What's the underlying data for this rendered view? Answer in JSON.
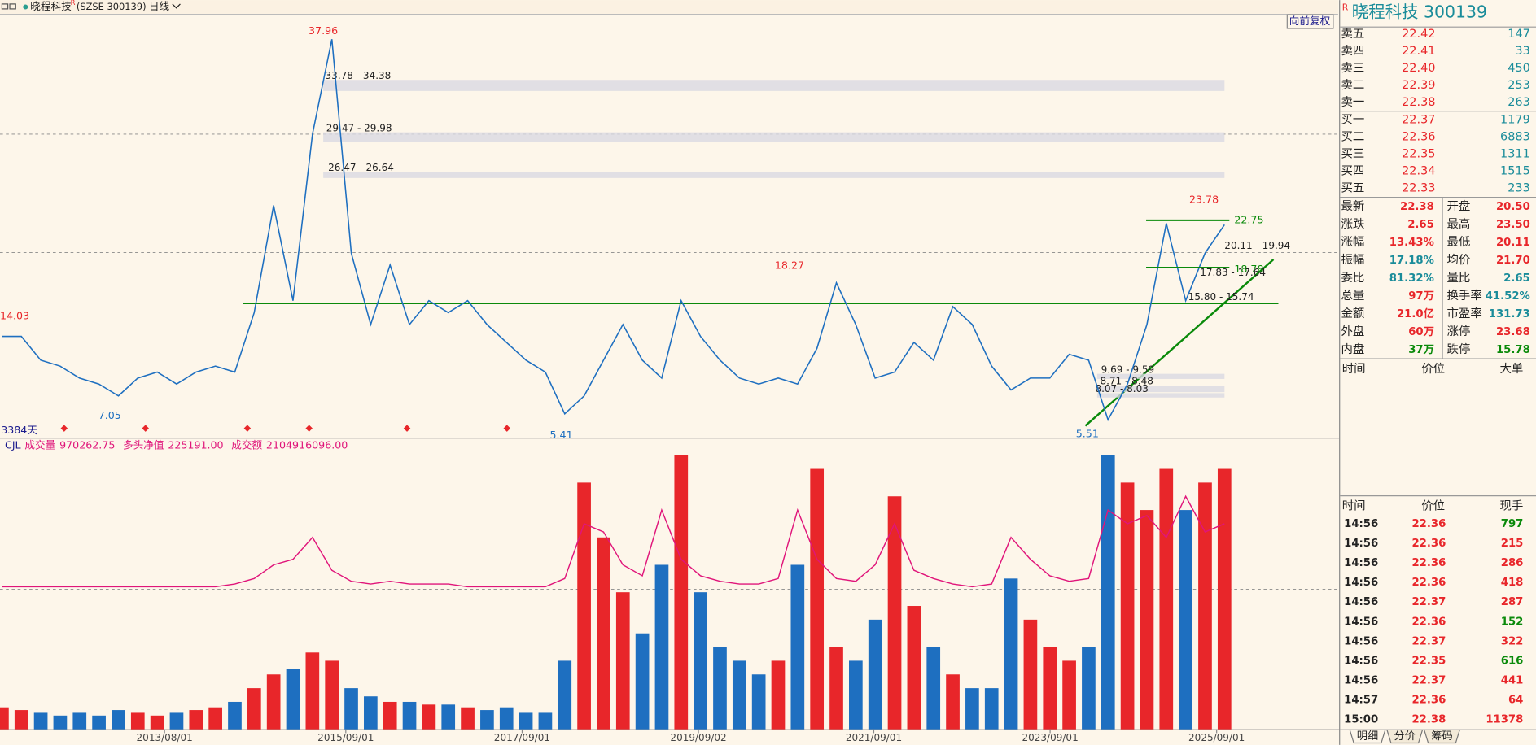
{
  "toolbar": {
    "name": "晓程科技",
    "mark": "R",
    "code": "(SZSE 300139)",
    "period": "日线",
    "adjust": "向前复权"
  },
  "chart_data": [
    {
      "type": "line",
      "color": "#1e6fc0",
      "ylim": [
        4.5,
        40.1
      ],
      "values": [
        13,
        13,
        11,
        10.5,
        9.5,
        9,
        8,
        9.5,
        10,
        9,
        10,
        10.5,
        10,
        15,
        24,
        16,
        30,
        37.96,
        20,
        14,
        19,
        14,
        16,
        15,
        16,
        14,
        12.5,
        11,
        10,
        6.5,
        8,
        11,
        14,
        11,
        9.5,
        16,
        13,
        11,
        9.5,
        9,
        9.5,
        9,
        12,
        17.5,
        14,
        9.5,
        10,
        12.5,
        11,
        15.5,
        14,
        10.5,
        8.5,
        9.5,
        9.5,
        11.5,
        11,
        6,
        9,
        14,
        22.5,
        16,
        20,
        22.38
      ],
      "annotations": [
        37.96,
        14.03,
        7.05,
        5.41,
        18.27,
        5.51,
        23.78
      ],
      "levels": [
        22.75,
        18.78
      ],
      "ranges": [
        {
          "label": "33.78 - 34.38",
          "values": [
            33.78,
            34.38
          ]
        },
        {
          "label": "29.47 - 29.98",
          "values": [
            29.47,
            29.98
          ]
        },
        {
          "label": "26.47 - 26.64",
          "values": [
            26.47,
            26.64
          ]
        },
        {
          "label": "20.11 - 19.94",
          "values": [
            20.11,
            19.94
          ]
        },
        {
          "label": "17.83 - 17.64",
          "values": [
            17.83,
            17.64
          ]
        },
        {
          "label": "15.80 - 15.74",
          "values": [
            15.8,
            15.74
          ]
        },
        {
          "label": "9.69 - 9.59",
          "values": [
            9.69,
            9.59
          ]
        },
        {
          "label": "8.71 - 8.48",
          "values": [
            8.71,
            8.48
          ]
        },
        {
          "label": "8.07 - 8.03",
          "values": [
            8.07,
            8.03
          ]
        }
      ],
      "period_label": "3384天"
    },
    {
      "type": "bar",
      "indicator": "CJL",
      "ylim": [
        0,
        100
      ],
      "series": [
        {
          "name": "成交量",
          "latest": "970262.75",
          "values": [
            8,
            7,
            6,
            5,
            6,
            5,
            7,
            6,
            5,
            6,
            7,
            8,
            10,
            15,
            20,
            22,
            28,
            25,
            15,
            12,
            10,
            10,
            9,
            9,
            8,
            7,
            8,
            6,
            6,
            25,
            90,
            70,
            50,
            35,
            60,
            100,
            50,
            30,
            25,
            20,
            25,
            60,
            95,
            30,
            25,
            40,
            85,
            45,
            30,
            20,
            15,
            15,
            55,
            40,
            30,
            25,
            30,
            100,
            90,
            80,
            95,
            80,
            90,
            95
          ]
        },
        {
          "name": "多头净值",
          "latest": "225191.00",
          "color": "#e0157a",
          "values": [
            52,
            52,
            52,
            52,
            52,
            52,
            52,
            52,
            52,
            52,
            52,
            52,
            53,
            55,
            60,
            62,
            70,
            58,
            54,
            53,
            54,
            53,
            53,
            53,
            52,
            52,
            52,
            52,
            52,
            55,
            75,
            72,
            60,
            56,
            80,
            62,
            56,
            54,
            53,
            53,
            55,
            80,
            62,
            55,
            54,
            60,
            75,
            58,
            55,
            53,
            52,
            53,
            70,
            62,
            56,
            54,
            55,
            80,
            75,
            78,
            70,
            85,
            72,
            75
          ]
        }
      ],
      "turnover": {
        "name": "成交额",
        "latest": "2104916096.00"
      },
      "xticks": [
        "2013/08/01",
        "2015/09/01",
        "2017/09/01",
        "2019/09/02",
        "2021/09/01",
        "2023/09/01",
        "2025/09/01"
      ]
    }
  ],
  "quote": {
    "title": "晓程科技  300139",
    "mark": "R",
    "orderbook": [
      [
        "卖五",
        "22.42",
        "147"
      ],
      [
        "卖四",
        "22.41",
        "33"
      ],
      [
        "卖三",
        "22.40",
        "450"
      ],
      [
        "卖二",
        "22.39",
        "253"
      ],
      [
        "卖一",
        "22.38",
        "263"
      ],
      [
        "买一",
        "22.37",
        "1179"
      ],
      [
        "买二",
        "22.36",
        "6883"
      ],
      [
        "买三",
        "22.35",
        "1311"
      ],
      [
        "买四",
        "22.34",
        "1515"
      ],
      [
        "买五",
        "22.33",
        "233"
      ]
    ],
    "stats": [
      [
        "最新",
        "22.38",
        "开盘",
        "20.50"
      ],
      [
        "涨跌",
        "2.65",
        "最高",
        "23.50"
      ],
      [
        "涨幅",
        "13.43%",
        "最低",
        "20.11"
      ],
      [
        "振幅",
        "17.18%",
        "均价",
        "21.70"
      ],
      [
        "委比",
        "81.32%",
        "量比",
        "2.65"
      ],
      [
        "总量",
        "97万",
        "换手率",
        "41.52%"
      ],
      [
        "金额",
        "21.0亿",
        "市盈率",
        "131.73"
      ],
      [
        "外盘",
        "60万",
        "涨停",
        "23.68"
      ],
      [
        "内盘",
        "37万",
        "跌停",
        "15.78"
      ]
    ],
    "big_header": [
      "时间",
      "价位",
      "大单"
    ],
    "trade_header": [
      "时间",
      "价位",
      "现手"
    ],
    "trades": [
      [
        "14:56",
        "22.36",
        "797"
      ],
      [
        "14:56",
        "22.36",
        "215"
      ],
      [
        "14:56",
        "22.36",
        "286"
      ],
      [
        "14:56",
        "22.36",
        "418"
      ],
      [
        "14:56",
        "22.37",
        "287"
      ],
      [
        "14:56",
        "22.36",
        "152"
      ],
      [
        "14:56",
        "22.37",
        "322"
      ],
      [
        "14:56",
        "22.35",
        "616"
      ],
      [
        "14:56",
        "22.37",
        "441"
      ],
      [
        "14:57",
        "22.36",
        "64"
      ],
      [
        "15:00",
        "22.38",
        "11378"
      ]
    ],
    "tabs": [
      "明细",
      "分价",
      "筹码"
    ]
  }
}
